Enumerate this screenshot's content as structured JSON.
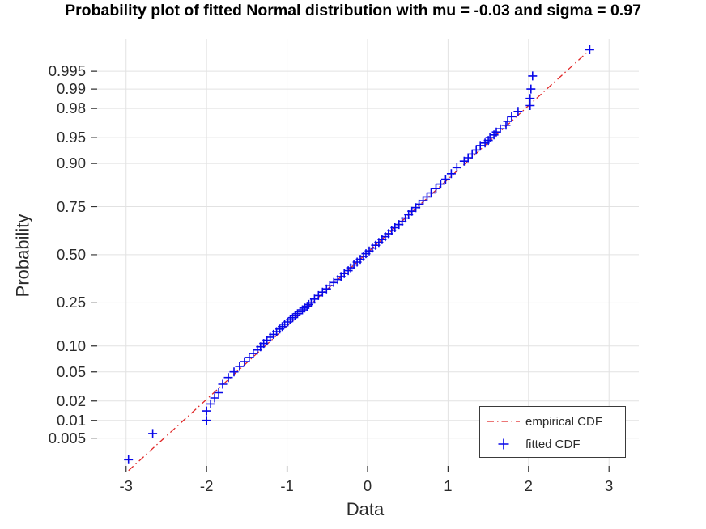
{
  "title": "Probability plot of fitted Normal distribution with mu = -0.03 and sigma = 0.97",
  "axes": {
    "x": {
      "label": "Data",
      "tick_labels": [
        "-3",
        "-2",
        "-1",
        "0",
        "1",
        "2",
        "3"
      ],
      "tick_values": [
        -3,
        -2,
        -1,
        0,
        1,
        2,
        3
      ],
      "lim": [
        -3.43,
        3.37
      ]
    },
    "y": {
      "label": "Probability",
      "scale": "normal-probability",
      "tick_labels": [
        "0.995",
        "0.99",
        "0.98",
        "0.95",
        "0.90",
        "0.75",
        "0.50",
        "0.25",
        "0.10",
        "0.05",
        "0.02",
        "0.01",
        "0.005"
      ],
      "tick_values": [
        0.995,
        0.99,
        0.98,
        0.95,
        0.9,
        0.75,
        0.5,
        0.25,
        0.1,
        0.05,
        0.02,
        0.01,
        0.005
      ],
      "lim": [
        0.00116,
        0.99879
      ]
    }
  },
  "legend": {
    "items": [
      {
        "label": "empirical CDF",
        "type": "dash-dot-line",
        "color": "#e02525"
      },
      {
        "label": "fitted CDF",
        "type": "plus-marker",
        "color": "#0909e8"
      }
    ]
  },
  "colors": {
    "background": "#ffffff",
    "grid": "#e2e2e2",
    "axis": "#333333",
    "text": "#2b2b2b",
    "title": "#000000",
    "empirical_line": "#e02525",
    "fitted_marker": "#0909e8"
  },
  "chart_data": {
    "type": "scatter",
    "title": "Probability plot of fitted Normal distribution with mu = -0.03 and sigma = 0.97",
    "xlabel": "Data",
    "ylabel": "Probability",
    "y_scale": "normal-probability",
    "xlim": [
      -3.43,
      3.37
    ],
    "ylim": [
      0.00116,
      0.99879
    ],
    "grid": true,
    "legend_position": "bottom-right",
    "fitted_normal": {
      "mu": -0.03,
      "sigma": 0.97
    },
    "series": [
      {
        "name": "empirical CDF",
        "type": "line",
        "style": "dash-dot",
        "color": "#e02525",
        "x_range": [
          -2.97,
          2.76
        ]
      },
      {
        "name": "fitted CDF",
        "type": "scatter",
        "marker": "+",
        "color": "#0909e8",
        "points": [
          [
            -2.97,
            0.002
          ],
          [
            -2.67,
            0.006
          ],
          [
            -2.0,
            0.01
          ],
          [
            -2.0,
            0.014
          ],
          [
            -1.95,
            0.018
          ],
          [
            -1.9,
            0.022
          ],
          [
            -1.85,
            0.026
          ],
          [
            -1.8,
            0.034
          ],
          [
            -1.73,
            0.042
          ],
          [
            -1.66,
            0.05
          ],
          [
            -1.59,
            0.058
          ],
          [
            -1.53,
            0.066
          ],
          [
            -1.47,
            0.074
          ],
          [
            -1.42,
            0.082
          ],
          [
            -1.37,
            0.09
          ],
          [
            -1.33,
            0.098
          ],
          [
            -1.29,
            0.106
          ],
          [
            -1.25,
            0.114
          ],
          [
            -1.21,
            0.122
          ],
          [
            -1.17,
            0.13
          ],
          [
            -1.13,
            0.138
          ],
          [
            -1.09,
            0.146
          ],
          [
            -1.06,
            0.154
          ],
          [
            -1.03,
            0.162
          ],
          [
            -0.99,
            0.17
          ],
          [
            -0.96,
            0.178
          ],
          [
            -0.93,
            0.186
          ],
          [
            -0.9,
            0.194
          ],
          [
            -0.87,
            0.202
          ],
          [
            -0.84,
            0.21
          ],
          [
            -0.81,
            0.218
          ],
          [
            -0.78,
            0.226
          ],
          [
            -0.75,
            0.234
          ],
          [
            -0.73,
            0.242
          ],
          [
            -0.7,
            0.25
          ],
          [
            -0.66,
            0.266
          ],
          [
            -0.61,
            0.282
          ],
          [
            -0.56,
            0.298
          ],
          [
            -0.51,
            0.314
          ],
          [
            -0.47,
            0.33
          ],
          [
            -0.42,
            0.346
          ],
          [
            -0.37,
            0.362
          ],
          [
            -0.33,
            0.378
          ],
          [
            -0.29,
            0.394
          ],
          [
            -0.24,
            0.41
          ],
          [
            -0.21,
            0.426
          ],
          [
            -0.17,
            0.442
          ],
          [
            -0.13,
            0.458
          ],
          [
            -0.09,
            0.474
          ],
          [
            -0.05,
            0.49
          ],
          [
            -0.02,
            0.506
          ],
          [
            0.02,
            0.522
          ],
          [
            0.06,
            0.538
          ],
          [
            0.1,
            0.554
          ],
          [
            0.14,
            0.57
          ],
          [
            0.18,
            0.586
          ],
          [
            0.22,
            0.602
          ],
          [
            0.26,
            0.618
          ],
          [
            0.3,
            0.634
          ],
          [
            0.34,
            0.65
          ],
          [
            0.39,
            0.666
          ],
          [
            0.43,
            0.682
          ],
          [
            0.47,
            0.698
          ],
          [
            0.51,
            0.714
          ],
          [
            0.55,
            0.73
          ],
          [
            0.6,
            0.746
          ],
          [
            0.64,
            0.762
          ],
          [
            0.69,
            0.778
          ],
          [
            0.74,
            0.794
          ],
          [
            0.79,
            0.81
          ],
          [
            0.85,
            0.826
          ],
          [
            0.91,
            0.842
          ],
          [
            0.97,
            0.858
          ],
          [
            1.04,
            0.874
          ],
          [
            1.11,
            0.89
          ],
          [
            1.2,
            0.906
          ],
          [
            1.25,
            0.914
          ],
          [
            1.3,
            0.922
          ],
          [
            1.35,
            0.93
          ],
          [
            1.4,
            0.938
          ],
          [
            1.46,
            0.942
          ],
          [
            1.5,
            0.946
          ],
          [
            1.52,
            0.95
          ],
          [
            1.57,
            0.954
          ],
          [
            1.6,
            0.958
          ],
          [
            1.65,
            0.962
          ],
          [
            1.72,
            0.966
          ],
          [
            1.74,
            0.97
          ],
          [
            1.79,
            0.974
          ],
          [
            1.87,
            0.978
          ],
          [
            2.02,
            0.982
          ],
          [
            2.02,
            0.986
          ],
          [
            2.03,
            0.99
          ],
          [
            2.05,
            0.994
          ],
          [
            2.76,
            0.998
          ]
        ]
      }
    ]
  }
}
